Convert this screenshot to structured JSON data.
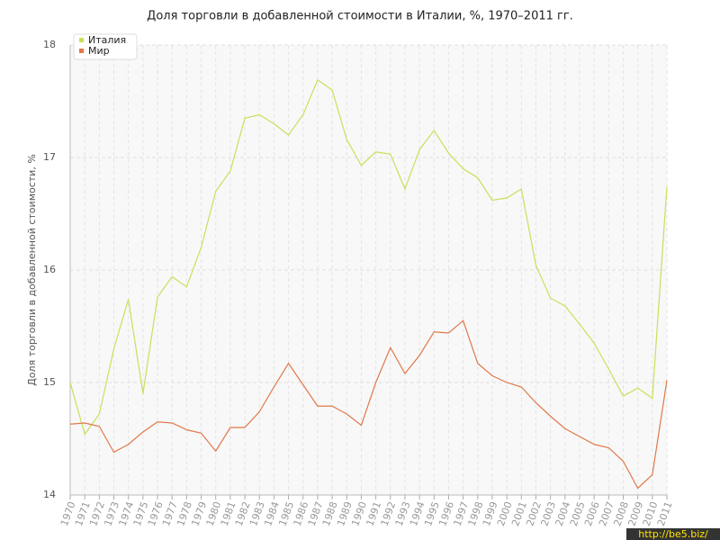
{
  "chart_data": {
    "type": "line",
    "title": "Доля торговли в добавленной стоимости в Италии, %, 1970–2011 гг.",
    "y_label": "Доля торговли в добавленной стоимости, %",
    "categories": [
      "1970",
      "1971",
      "1972",
      "1973",
      "1974",
      "1975",
      "1976",
      "1977",
      "1978",
      "1979",
      "1980",
      "1981",
      "1982",
      "1983",
      "1984",
      "1985",
      "1986",
      "1987",
      "1988",
      "1989",
      "1990",
      "1991",
      "1992",
      "1993",
      "1994",
      "1995",
      "1996",
      "1997",
      "1998",
      "1999",
      "2000",
      "2001",
      "2002",
      "2003",
      "2004",
      "2005",
      "2006",
      "2007",
      "2008",
      "2009",
      "2010",
      "2011"
    ],
    "series": [
      {
        "name": "Италия",
        "color": "#c8e05a",
        "values": [
          15.0,
          14.54,
          14.72,
          15.3,
          15.74,
          14.9,
          15.76,
          15.94,
          15.85,
          16.2,
          16.7,
          16.88,
          17.35,
          17.38,
          17.3,
          17.2,
          17.38,
          17.69,
          17.6,
          17.16,
          16.93,
          17.05,
          17.03,
          16.72,
          17.07,
          17.24,
          17.04,
          16.9,
          16.82,
          16.62,
          16.64,
          16.72,
          16.04,
          15.75,
          15.68,
          15.52,
          15.35,
          15.12,
          14.88,
          14.95,
          14.86,
          16.74
        ]
      },
      {
        "name": "Мир",
        "color": "#e0784a",
        "values": [
          14.63,
          14.64,
          14.61,
          14.38,
          14.45,
          14.56,
          14.65,
          14.64,
          14.58,
          14.55,
          14.39,
          14.6,
          14.6,
          14.74,
          14.96,
          15.17,
          14.98,
          14.79,
          14.79,
          14.72,
          14.62,
          15.0,
          15.31,
          15.08,
          15.24,
          15.45,
          15.44,
          15.55,
          15.17,
          15.06,
          15.0,
          14.96,
          14.82,
          14.7,
          14.59,
          14.52,
          14.45,
          14.42,
          14.3,
          14.06,
          14.18,
          15.02
        ]
      }
    ],
    "ylim": [
      14,
      18
    ],
    "yticks": [
      14,
      15,
      16,
      17,
      18
    ],
    "grid": true,
    "legend": "top-left",
    "watermark": "http://be5.biz/"
  }
}
